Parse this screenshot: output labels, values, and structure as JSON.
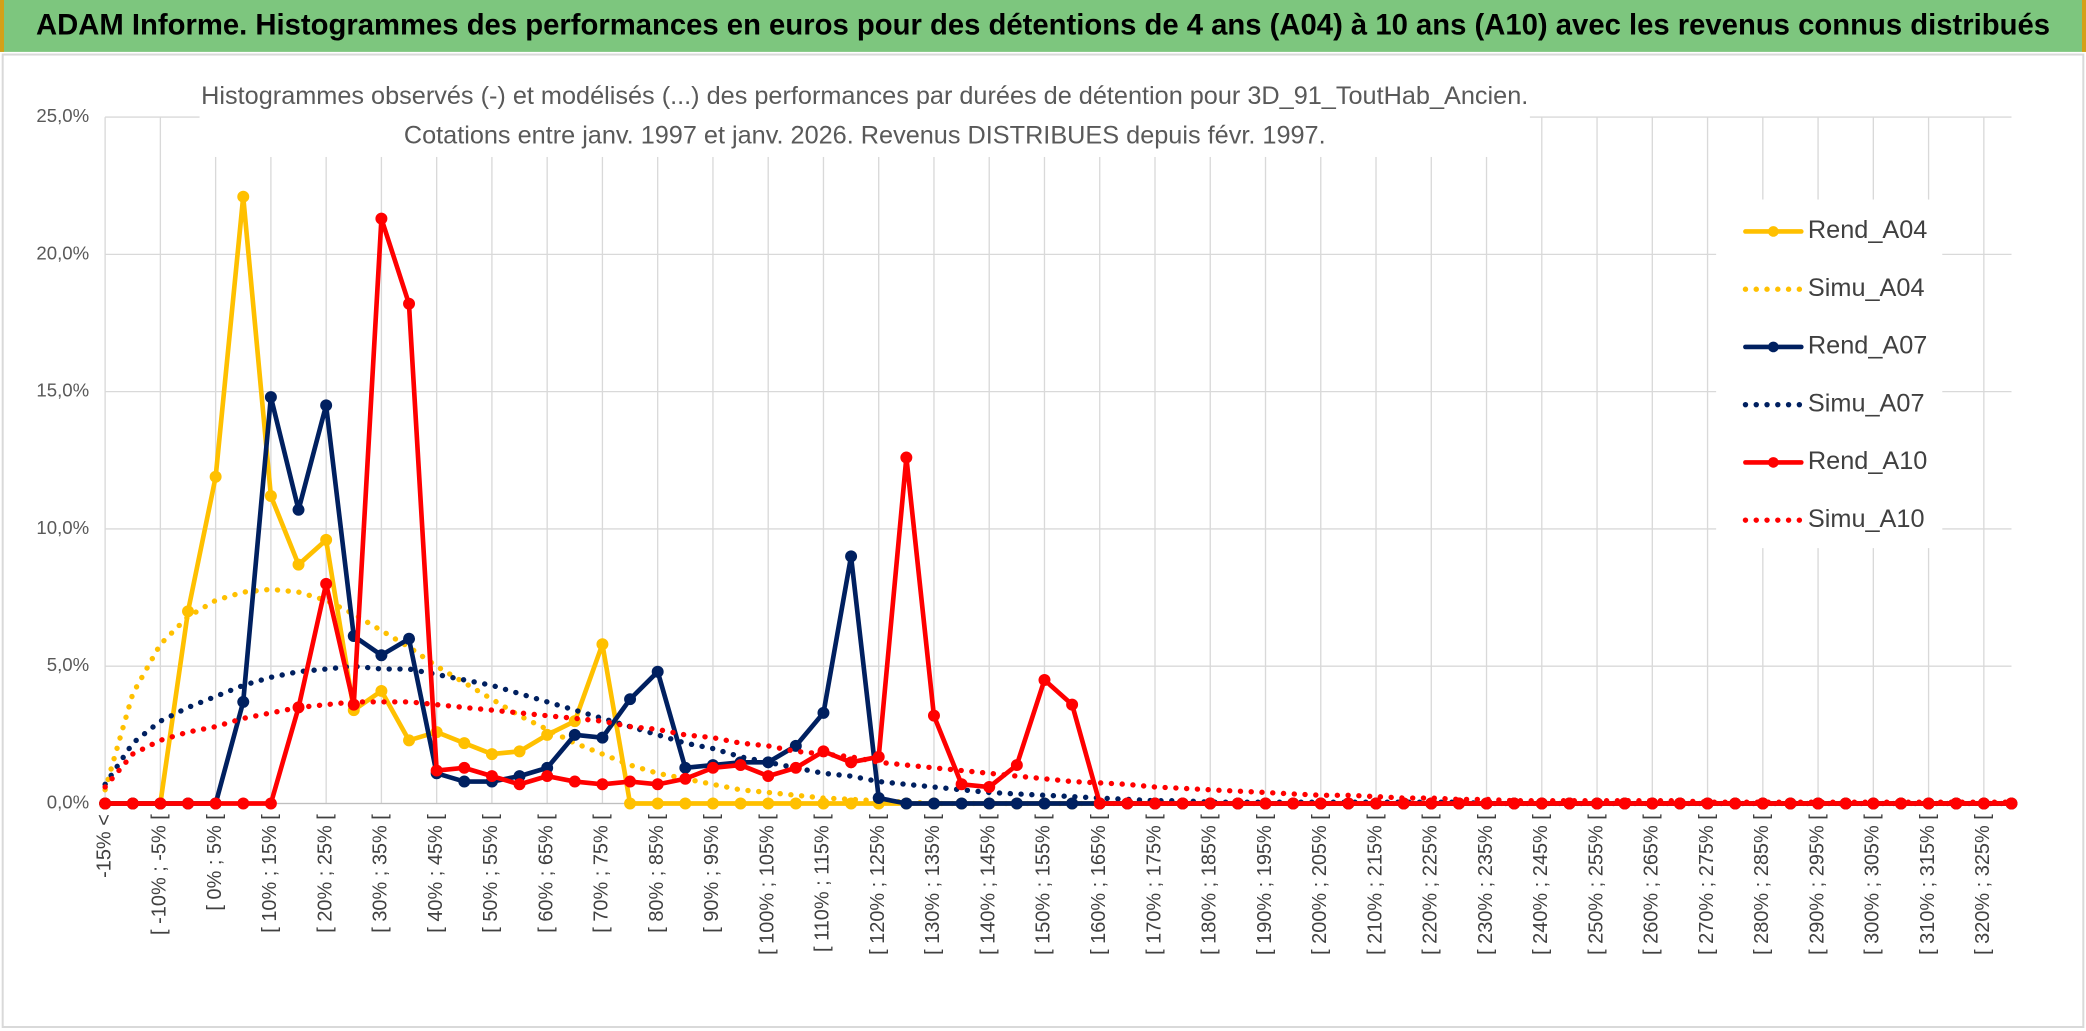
{
  "header": {
    "title": "ADAM Informe. Histogrammes des performances en euros pour des détentions de 4 ans (A04) à 10 ans (A10) avec les revenus connus distribués"
  },
  "chart_data": {
    "type": "line",
    "subtitle": [
      "Histogrammes observés (-) et modélisés (...) des performances par durées de détention pour 3D_91_ToutHab_Ancien.",
      "Cotations entre janv. 1997 et janv. 2026. Revenus DISTRIBUES depuis févr. 1997."
    ],
    "categories": [
      "-15% <",
      null,
      "[ -10% ; -5% [",
      null,
      "[ 0% ; 5% [",
      null,
      "[ 10% ; 15% [",
      null,
      "[ 20% ; 25% [",
      null,
      "[ 30% ; 35% [",
      null,
      "[ 40% ; 45% [",
      null,
      "[ 50% ; 55% [",
      null,
      "[ 60% ; 65% [",
      null,
      "[ 70% ; 75% [",
      null,
      "[ 80% ; 85% [",
      null,
      "[ 90% ; 95% [",
      null,
      "[ 100% ; 105% [",
      null,
      "[ 110% ; 115% [",
      null,
      "[ 120% ; 125% [",
      null,
      "[ 130% ; 135% [",
      null,
      "[ 140% ; 145% [",
      null,
      "[ 150% ; 155% [",
      null,
      "[ 160% ; 165% [",
      null,
      "[ 170% ; 175% [",
      null,
      "[ 180% ; 185% [",
      null,
      "[ 190% ; 195% [",
      null,
      "[ 200% ; 205% [",
      null,
      "[ 210% ; 215% [",
      null,
      "[ 220% ; 225% [",
      null,
      "[ 230% ; 235% [",
      null,
      "[ 240% ; 245% [",
      null,
      "[ 250% ; 255% [",
      null,
      "[ 260% ; 265% [",
      null,
      "[ 270% ; 275% [",
      null,
      "[ 280% ; 285% [",
      null,
      "[ 290% ; 295% [",
      null,
      "[ 300% ; 305% [",
      null,
      "[ 310% ; 315% [",
      null,
      "[ 320% ; 325% [",
      null
    ],
    "series": [
      {
        "name": "Rend_A04",
        "color": "#ffc000",
        "style": "solid",
        "markers": true,
        "values": [
          0,
          0,
          0,
          7.0,
          11.9,
          22.1,
          11.2,
          8.7,
          9.6,
          3.4,
          4.1,
          2.3,
          2.6,
          2.2,
          1.8,
          1.9,
          2.5,
          3.0,
          5.8,
          0,
          0,
          0,
          0,
          0,
          0,
          0,
          0,
          0,
          0,
          0,
          0,
          0,
          0,
          0,
          0,
          0,
          0,
          0,
          0,
          0,
          0,
          0,
          0,
          0,
          0,
          0,
          0,
          0,
          0,
          0,
          0,
          0,
          0,
          0,
          0,
          0,
          0,
          0,
          0,
          0,
          0,
          0,
          0,
          0,
          0,
          0,
          0,
          0,
          0,
          0
        ]
      },
      {
        "name": "Simu_A04",
        "color": "#ffc000",
        "style": "dotted",
        "markers": false,
        "values": [
          0.5,
          4.0,
          5.8,
          6.8,
          7.4,
          7.7,
          7.8,
          7.7,
          7.4,
          6.9,
          6.3,
          5.7,
          5.0,
          4.4,
          3.8,
          3.2,
          2.7,
          2.2,
          1.8,
          1.4,
          1.1,
          0.9,
          0.7,
          0.5,
          0.4,
          0.3,
          0.2,
          0.15,
          0.1,
          0.05,
          0,
          0,
          0,
          0,
          0,
          0,
          0,
          0,
          0,
          0,
          0,
          0,
          0,
          0,
          0,
          0,
          0,
          0,
          0,
          0,
          0,
          0,
          0,
          0,
          0,
          0,
          0,
          0,
          0,
          0,
          0,
          0,
          0,
          0,
          0,
          0,
          0,
          0,
          0,
          0
        ]
      },
      {
        "name": "Rend_A07",
        "color": "#002060",
        "style": "solid",
        "markers": true,
        "values": [
          0,
          0,
          0,
          0,
          0,
          3.7,
          14.8,
          10.7,
          14.5,
          6.1,
          5.4,
          6.0,
          1.1,
          0.8,
          0.8,
          1.0,
          1.3,
          2.5,
          2.4,
          3.8,
          4.8,
          1.3,
          1.4,
          1.5,
          1.5,
          2.1,
          3.3,
          9.0,
          0.2,
          0,
          0,
          0,
          0,
          0,
          0,
          0,
          0,
          0,
          0,
          0,
          0,
          0,
          0,
          0,
          0,
          0,
          0,
          0,
          0,
          0,
          0,
          0,
          0,
          0,
          0,
          0,
          0,
          0,
          0,
          0,
          0,
          0,
          0,
          0,
          0,
          0,
          0,
          0,
          0,
          0
        ]
      },
      {
        "name": "Simu_A07",
        "color": "#002060",
        "style": "dotted",
        "markers": false,
        "values": [
          0.7,
          2.2,
          3.0,
          3.5,
          3.9,
          4.3,
          4.6,
          4.8,
          4.9,
          5.0,
          4.9,
          4.9,
          4.7,
          4.5,
          4.3,
          4.0,
          3.7,
          3.4,
          3.1,
          2.8,
          2.5,
          2.2,
          2.0,
          1.7,
          1.5,
          1.3,
          1.1,
          1.0,
          0.8,
          0.7,
          0.6,
          0.5,
          0.4,
          0.35,
          0.3,
          0.25,
          0.2,
          0.15,
          0.1,
          0.1,
          0.05,
          0.05,
          0.05,
          0.05,
          0.05,
          0.05,
          0.05,
          0.05,
          0.05,
          0.05,
          0,
          0,
          0,
          0,
          0,
          0,
          0,
          0,
          0,
          0,
          0,
          0,
          0,
          0,
          0,
          0,
          0,
          0,
          0,
          0
        ]
      },
      {
        "name": "Rend_A10",
        "color": "#ff0000",
        "style": "solid",
        "markers": true,
        "values": [
          0,
          0,
          0,
          0,
          0,
          0,
          0,
          3.5,
          8.0,
          3.6,
          21.3,
          18.2,
          1.2,
          1.3,
          1.0,
          0.7,
          1.0,
          0.8,
          0.7,
          0.8,
          0.7,
          0.9,
          1.3,
          1.4,
          1.0,
          1.3,
          1.9,
          1.5,
          1.7,
          12.6,
          3.2,
          0.7,
          0.6,
          1.4,
          4.5,
          3.6,
          0,
          0,
          0,
          0,
          0,
          0,
          0,
          0,
          0,
          0,
          0,
          0,
          0,
          0,
          0,
          0,
          0,
          0,
          0,
          0,
          0,
          0,
          0,
          0,
          0,
          0,
          0,
          0,
          0,
          0,
          0,
          0,
          0,
          0
        ]
      },
      {
        "name": "Simu_A10",
        "color": "#ff0000",
        "style": "dotted",
        "markers": false,
        "values": [
          0.6,
          1.8,
          2.3,
          2.6,
          2.8,
          3.1,
          3.3,
          3.5,
          3.6,
          3.7,
          3.7,
          3.7,
          3.6,
          3.5,
          3.4,
          3.3,
          3.2,
          3.1,
          3.0,
          2.8,
          2.7,
          2.5,
          2.4,
          2.2,
          2.1,
          1.9,
          1.8,
          1.7,
          1.5,
          1.4,
          1.3,
          1.2,
          1.1,
          1.0,
          0.9,
          0.8,
          0.75,
          0.7,
          0.6,
          0.55,
          0.5,
          0.45,
          0.4,
          0.35,
          0.3,
          0.3,
          0.25,
          0.2,
          0.2,
          0.15,
          0.15,
          0.1,
          0.1,
          0.1,
          0.1,
          0.1,
          0.1,
          0.1,
          0.05,
          0.05,
          0.05,
          0.05,
          0.05,
          0.05,
          0.05,
          0.05,
          0.05,
          0.05,
          0.05,
          0.05
        ]
      }
    ],
    "ylim": [
      0,
      25
    ],
    "yticks": [
      {
        "value": 0,
        "label": "0,0%"
      },
      {
        "value": 5,
        "label": "5,0%"
      },
      {
        "value": 10,
        "label": "10,0%"
      },
      {
        "value": 15,
        "label": "15,0%"
      },
      {
        "value": 20,
        "label": "20,0%"
      },
      {
        "value": 25,
        "label": "25,0%"
      }
    ],
    "grid": true,
    "legend": "right"
  }
}
